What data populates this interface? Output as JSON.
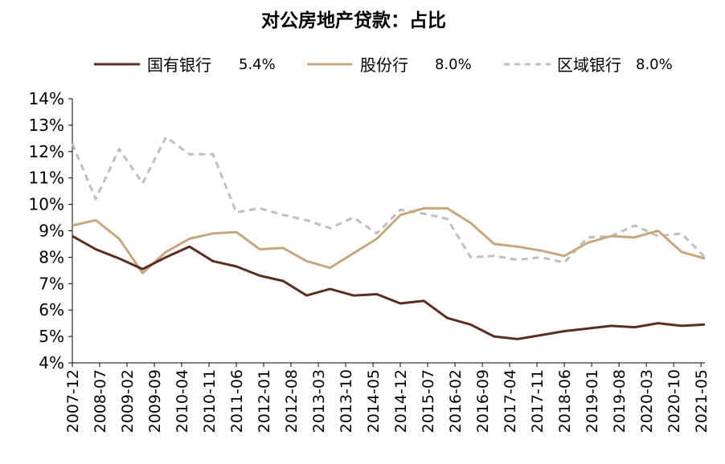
{
  "chart_data": {
    "type": "line",
    "title": "对公房地产贷款：占比",
    "xlabel": "",
    "ylabel": "",
    "ylim": [
      4,
      14
    ],
    "yticks": [
      "4%",
      "5%",
      "6%",
      "7%",
      "8%",
      "9%",
      "10%",
      "11%",
      "12%",
      "13%",
      "14%"
    ],
    "xticks": [
      "2007-12",
      "2008-07",
      "2009-02",
      "2009-09",
      "2010-04",
      "2010-11",
      "2011-06",
      "2012-01",
      "2012-08",
      "2013-03",
      "2013-10",
      "2014-05",
      "2014-12",
      "2015-07",
      "2016-02",
      "2016-09",
      "2017-04",
      "2017-11",
      "2018-06",
      "2019-01",
      "2019-08",
      "2020-03",
      "2020-10",
      "2021-05"
    ],
    "grid": false,
    "legend_position": "top",
    "x": [
      "2007-12",
      "2008-06",
      "2008-12",
      "2009-06",
      "2009-12",
      "2010-06",
      "2010-12",
      "2011-06",
      "2011-12",
      "2012-06",
      "2012-12",
      "2013-06",
      "2013-12",
      "2014-06",
      "2014-12",
      "2015-06",
      "2015-12",
      "2016-06",
      "2016-12",
      "2017-06",
      "2017-12",
      "2018-06",
      "2018-12",
      "2019-06",
      "2019-12",
      "2020-06",
      "2020-12",
      "2021-06"
    ],
    "series": [
      {
        "name": "国有银行",
        "legend_value": "5.4%",
        "color": "#5c2e22",
        "dash": false,
        "values": [
          8.8,
          8.3,
          7.95,
          7.55,
          8.0,
          8.4,
          7.85,
          7.65,
          7.3,
          7.1,
          6.55,
          6.8,
          6.55,
          6.6,
          6.25,
          6.35,
          5.7,
          5.45,
          5.0,
          4.9,
          5.05,
          5.2,
          5.3,
          5.4,
          5.35,
          5.5,
          5.4,
          5.45
        ]
      },
      {
        "name": "股份行",
        "legend_value": "8.0%",
        "color": "#c8a77f",
        "dash": false,
        "values": [
          9.2,
          9.4,
          8.7,
          7.4,
          8.2,
          8.7,
          8.9,
          8.95,
          8.3,
          8.35,
          7.85,
          7.6,
          8.15,
          8.7,
          9.6,
          9.85,
          9.85,
          9.3,
          8.5,
          8.4,
          8.25,
          8.05,
          8.55,
          8.8,
          8.75,
          9.0,
          8.2,
          7.95
        ]
      },
      {
        "name": "区域银行",
        "legend_value": "8.0%",
        "color": "#bfbfbf",
        "dash": true,
        "values": [
          12.3,
          10.2,
          12.1,
          10.8,
          12.55,
          11.9,
          11.9,
          9.7,
          9.85,
          9.6,
          9.4,
          9.1,
          9.5,
          8.9,
          9.8,
          9.65,
          9.45,
          8.0,
          8.05,
          7.9,
          8.0,
          7.8,
          8.75,
          8.8,
          9.2,
          8.8,
          8.9,
          8.0
        ]
      }
    ]
  }
}
